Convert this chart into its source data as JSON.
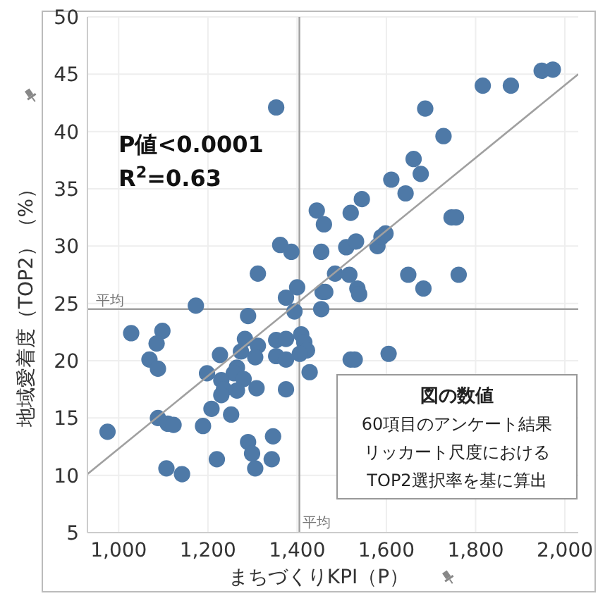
{
  "chart_data": {
    "type": "scatter",
    "xlabel": "まちづくりKPI（P）",
    "ylabel": "地域愛着度（TOP2）（%）",
    "xlim": [
      930,
      2030
    ],
    "ylim": [
      5,
      50
    ],
    "xticks": [
      {
        "value": 1000,
        "label": "1,000"
      },
      {
        "value": 1200,
        "label": "1,200"
      },
      {
        "value": 1400,
        "label": "1,400"
      },
      {
        "value": 1600,
        "label": "1,600"
      },
      {
        "value": 1800,
        "label": "1,800"
      },
      {
        "value": 2000,
        "label": "2,000"
      }
    ],
    "yticks": [
      5,
      10,
      15,
      20,
      25,
      30,
      35,
      40,
      45,
      50
    ],
    "grid": true,
    "series": [
      {
        "marker": "circle",
        "color": "#4e79a7",
        "x": [
          1353,
          1444,
          1460,
          1520,
          1362,
          1387,
          1454,
          1510,
          1312,
          1485,
          1517,
          1400,
          1375,
          1545,
          1611,
          1643,
          1661,
          1677,
          1687,
          1728,
          1816,
          1879,
          1948,
          1973,
          1746,
          1756,
          1532,
          1580,
          1589,
          1598,
          1535,
          1539,
          1649,
          1762,
          1683,
          1463,
          1173,
          1457,
          1454,
          1394,
          1290,
          1028,
          1098,
          1085,
          1069,
          1088,
          1283,
          1312,
          1353,
          1375,
          1409,
          1416,
          1422,
          1406,
          1353,
          1375,
          1306,
          1274,
          1227,
          1265,
          1258,
          1198,
          1280,
          1230,
          1236,
          1309,
          1265,
          1375,
          1428,
          1520,
          1230,
          1208,
          1252,
          1189,
          1088,
          1110,
          1123,
          975,
          1290,
          1346,
          1299,
          1220,
          1343,
          1306,
          1107,
          1142,
          1529,
          1605
        ],
        "values": [
          42.1,
          33.1,
          31.9,
          32.9,
          30.1,
          29.5,
          29.5,
          29.9,
          27.6,
          27.6,
          27.5,
          26.4,
          25.5,
          34.1,
          35.8,
          34.6,
          37.6,
          36.3,
          42,
          39.6,
          44,
          44,
          45.3,
          45.4,
          32.5,
          32.5,
          30.4,
          30,
          30.8,
          31.1,
          26.3,
          25.8,
          27.5,
          27.5,
          26.3,
          26,
          24.8,
          26,
          24.5,
          24.3,
          23.9,
          22.4,
          22.6,
          21.5,
          20.1,
          19.3,
          21.9,
          21.3,
          21.8,
          21.9,
          22.3,
          21.6,
          20.9,
          20.6,
          20.4,
          20.1,
          20.3,
          20.8,
          20.5,
          19.4,
          18.9,
          18.9,
          18.4,
          18.3,
          17.5,
          17.6,
          17.4,
          17.5,
          19,
          20.1,
          17,
          15.8,
          15.3,
          14.3,
          15,
          14.5,
          14.4,
          13.8,
          12.9,
          13.4,
          11.9,
          11.4,
          11.4,
          10.6,
          10.6,
          10.1,
          20.1,
          20.6
        ]
      },
      {
        "type": "line",
        "color": "#a0a0a0",
        "x": [
          930,
          2030
        ],
        "values": [
          10.1,
          45
        ]
      }
    ],
    "ref_lines": [
      {
        "axis": "x",
        "value": 1405,
        "label": "平均",
        "color": "#a0a0a0"
      },
      {
        "axis": "y",
        "value": 24.5,
        "label": "平均",
        "color": "#a0a0a0"
      }
    ],
    "annotations": [
      "P値<0.0001",
      "R$^{2}$=0.63",
      "図の数値",
      "60項目のアンケート結果",
      "リッカート尺度における",
      "TOP2選択率を基に算出"
    ]
  }
}
